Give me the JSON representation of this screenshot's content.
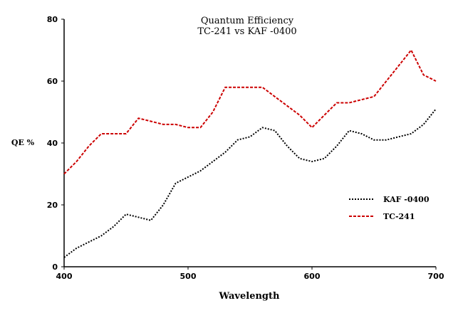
{
  "chart_data": {
    "type": "line",
    "title": "Quantum Efficiency",
    "subtitle": "TC-241 vs KAF -0400",
    "xlabel": "Wavelength",
    "ylabel": "QE %",
    "xlim": [
      400,
      700
    ],
    "ylim": [
      0,
      80
    ],
    "x_ticks": [
      "400",
      "500",
      "600",
      "700"
    ],
    "y_ticks": [
      "0",
      "20",
      "40",
      "60",
      "80"
    ],
    "grid": false,
    "legend_position": "right",
    "series": [
      {
        "name": "KAF -0400",
        "color": "#000000",
        "style": "dotted",
        "points": [
          [
            400,
            3
          ],
          [
            410,
            6
          ],
          [
            420,
            8
          ],
          [
            430,
            10
          ],
          [
            440,
            13
          ],
          [
            450,
            17
          ],
          [
            460,
            16
          ],
          [
            470,
            15
          ],
          [
            480,
            20
          ],
          [
            490,
            27
          ],
          [
            500,
            29
          ],
          [
            510,
            31
          ],
          [
            520,
            34
          ],
          [
            530,
            37
          ],
          [
            540,
            41
          ],
          [
            550,
            42
          ],
          [
            560,
            45
          ],
          [
            570,
            44
          ],
          [
            580,
            39
          ],
          [
            590,
            35
          ],
          [
            600,
            34
          ],
          [
            610,
            35
          ],
          [
            620,
            39
          ],
          [
            630,
            44
          ],
          [
            640,
            43
          ],
          [
            650,
            41
          ],
          [
            660,
            41
          ],
          [
            670,
            42
          ],
          [
            680,
            43
          ],
          [
            690,
            46
          ],
          [
            700,
            51
          ]
        ]
      },
      {
        "name": "TC-241",
        "color": "#cc0000",
        "style": "dashed",
        "points": [
          [
            400,
            30
          ],
          [
            410,
            34
          ],
          [
            420,
            39
          ],
          [
            430,
            43
          ],
          [
            440,
            43
          ],
          [
            450,
            43
          ],
          [
            460,
            48
          ],
          [
            470,
            47
          ],
          [
            480,
            46
          ],
          [
            490,
            46
          ],
          [
            500,
            45
          ],
          [
            510,
            45
          ],
          [
            520,
            50
          ],
          [
            530,
            58
          ],
          [
            540,
            58
          ],
          [
            550,
            58
          ],
          [
            560,
            58
          ],
          [
            570,
            55
          ],
          [
            580,
            52
          ],
          [
            590,
            49
          ],
          [
            600,
            45
          ],
          [
            610,
            49
          ],
          [
            620,
            53
          ],
          [
            630,
            53
          ],
          [
            640,
            54
          ],
          [
            650,
            55
          ],
          [
            660,
            60
          ],
          [
            670,
            65
          ],
          [
            680,
            70
          ],
          [
            690,
            62
          ],
          [
            700,
            60
          ]
        ]
      }
    ]
  }
}
